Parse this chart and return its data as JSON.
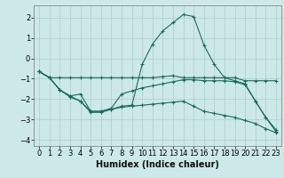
{
  "xlabel": "Humidex (Indice chaleur)",
  "ylabel": "",
  "background_color": "#cde8e8",
  "grid_color": "#aacccc",
  "line_color": "#1a6b60",
  "xlim": [
    -0.5,
    23.5
  ],
  "ylim": [
    -4.3,
    2.6
  ],
  "yticks": [
    -4,
    -3,
    -2,
    -1,
    0,
    1,
    2
  ],
  "xticks": [
    0,
    1,
    2,
    3,
    4,
    5,
    6,
    7,
    8,
    9,
    10,
    11,
    12,
    13,
    14,
    15,
    16,
    17,
    18,
    19,
    20,
    21,
    22,
    23
  ],
  "series": {
    "line1": {
      "x": [
        0,
        1,
        2,
        3,
        4,
        5,
        6,
        7,
        8,
        9,
        10,
        11,
        12,
        13,
        14,
        15,
        16,
        17,
        18,
        19,
        20,
        21,
        22,
        23
      ],
      "y": [
        -0.65,
        -0.95,
        -0.95,
        -0.95,
        -0.95,
        -0.95,
        -0.95,
        -0.95,
        -0.95,
        -0.95,
        -0.95,
        -0.95,
        -0.9,
        -0.85,
        -0.95,
        -0.95,
        -0.95,
        -0.95,
        -0.95,
        -0.95,
        -1.1,
        -1.1,
        -1.1,
        -1.1
      ]
    },
    "line2": {
      "x": [
        0,
        1,
        2,
        3,
        4,
        5,
        6,
        7,
        8,
        9,
        10,
        11,
        12,
        13,
        14,
        15,
        16,
        17,
        18,
        19,
        20,
        21,
        22,
        23
      ],
      "y": [
        -0.65,
        -0.95,
        -1.55,
        -1.85,
        -1.75,
        -2.6,
        -2.6,
        -2.45,
        -1.75,
        -1.6,
        -1.45,
        -1.35,
        -1.25,
        -1.15,
        -1.05,
        -1.05,
        -1.1,
        -1.1,
        -1.1,
        -1.15,
        -1.3,
        -2.1,
        -2.9,
        -3.5
      ]
    },
    "line3": {
      "x": [
        0,
        1,
        2,
        3,
        4,
        5,
        6,
        7,
        8,
        9,
        10,
        11,
        12,
        13,
        14,
        15,
        16,
        17,
        18,
        19,
        20,
        21,
        22,
        23
      ],
      "y": [
        -0.65,
        -0.95,
        -1.55,
        -1.9,
        -2.1,
        -2.65,
        -2.65,
        -2.5,
        -2.35,
        -2.3,
        -0.3,
        0.7,
        1.35,
        1.75,
        2.15,
        2.05,
        0.65,
        -0.3,
        -0.95,
        -1.1,
        -1.25,
        -2.1,
        -2.9,
        -3.6
      ]
    },
    "line4": {
      "x": [
        0,
        1,
        2,
        3,
        4,
        5,
        6,
        7,
        8,
        9,
        10,
        11,
        12,
        13,
        14,
        15,
        16,
        17,
        18,
        19,
        20,
        21,
        22,
        23
      ],
      "y": [
        -0.65,
        -0.95,
        -1.55,
        -1.85,
        -2.1,
        -2.6,
        -2.6,
        -2.5,
        -2.4,
        -2.35,
        -2.3,
        -2.25,
        -2.2,
        -2.15,
        -2.1,
        -2.35,
        -2.6,
        -2.7,
        -2.8,
        -2.9,
        -3.05,
        -3.2,
        -3.45,
        -3.65
      ]
    }
  },
  "font_size_xlabel": 7,
  "font_size_ticks": 6
}
